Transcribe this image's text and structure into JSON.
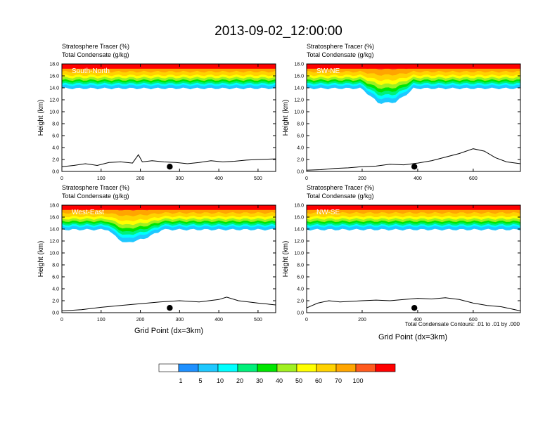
{
  "title": "2013-09-02_12:00:00",
  "contour_note": "Total Condensate Contours: .01 to .01 by .000",
  "colorbar": {
    "labels": [
      "1",
      "5",
      "10",
      "20",
      "30",
      "40",
      "50",
      "60",
      "70",
      "100"
    ],
    "colors": [
      "#ffffff",
      "#1e90ff",
      "#1ec8ff",
      "#00ffff",
      "#00f07a",
      "#00e600",
      "#a0f020",
      "#ffff00",
      "#ffd200",
      "#ffa500",
      "#ff5a1e",
      "#ff0000"
    ]
  },
  "chart_data": [
    {
      "type": "heatmap",
      "panel_label": "South-North",
      "header_line1": "Stratosphere Tracer   (%)",
      "header_line2": "Total Condensate   (g/kg)",
      "ylabel": "Height (km)",
      "xlabel": "",
      "xlim": [
        0,
        545
      ],
      "ylim": [
        0,
        18
      ],
      "xticks": [
        0,
        100,
        200,
        300,
        400,
        500
      ],
      "yticks": [
        "0.0",
        "2.0",
        "4.0",
        "6.0",
        "8.0",
        "10.0",
        "12.0",
        "14.0",
        "16.0",
        "18.0"
      ],
      "marker_x": 275,
      "tropopause_km": 14.1,
      "terrain": [
        [
          0,
          0.8
        ],
        [
          30,
          1.0
        ],
        [
          60,
          1.3
        ],
        [
          90,
          1.0
        ],
        [
          120,
          1.5
        ],
        [
          150,
          1.6
        ],
        [
          180,
          1.4
        ],
        [
          195,
          2.8
        ],
        [
          205,
          1.6
        ],
        [
          230,
          1.8
        ],
        [
          260,
          1.6
        ],
        [
          290,
          1.5
        ],
        [
          320,
          1.3
        ],
        [
          350,
          1.5
        ],
        [
          380,
          1.8
        ],
        [
          410,
          1.6
        ],
        [
          440,
          1.7
        ],
        [
          470,
          1.9
        ],
        [
          500,
          2.0
        ],
        [
          545,
          2.1
        ]
      ],
      "dip": []
    },
    {
      "type": "heatmap",
      "panel_label": "SW-NE",
      "header_line1": "Stratosphere Tracer   (%)",
      "header_line2": "Total Condensate   (g/kg)",
      "ylabel": "Height (km)",
      "xlabel": "",
      "xlim": [
        0,
        770
      ],
      "ylim": [
        0,
        18
      ],
      "xticks": [
        0,
        200,
        400,
        600
      ],
      "yticks": [
        "0.0",
        "2.0",
        "4.0",
        "6.0",
        "8.0",
        "10.0",
        "12.0",
        "14.0",
        "16.0",
        "18.0"
      ],
      "marker_x": 388,
      "tropopause_km": 14.1,
      "terrain": [
        [
          0,
          0.2
        ],
        [
          50,
          0.3
        ],
        [
          100,
          0.5
        ],
        [
          150,
          0.6
        ],
        [
          200,
          0.8
        ],
        [
          250,
          0.9
        ],
        [
          300,
          1.2
        ],
        [
          350,
          1.1
        ],
        [
          400,
          1.4
        ],
        [
          450,
          1.8
        ],
        [
          500,
          2.4
        ],
        [
          550,
          3.0
        ],
        [
          600,
          3.8
        ],
        [
          640,
          3.4
        ],
        [
          680,
          2.3
        ],
        [
          720,
          1.6
        ],
        [
          770,
          1.3
        ]
      ],
      "dip": [
        [
          200,
          14.0
        ],
        [
          260,
          11.6
        ],
        [
          320,
          11.8
        ],
        [
          380,
          13.8
        ]
      ]
    },
    {
      "type": "heatmap",
      "panel_label": "West-East",
      "header_line1": "Stratosphere Tracer   (%)",
      "header_line2": "Total Condensate   (g/kg)",
      "ylabel": "Height (km)",
      "xlabel": "Grid Point (dx=3km)",
      "xlim": [
        0,
        545
      ],
      "ylim": [
        0,
        18
      ],
      "xticks": [
        0,
        100,
        200,
        300,
        400,
        500
      ],
      "yticks": [
        "0.0",
        "2.0",
        "4.0",
        "6.0",
        "8.0",
        "10.0",
        "12.0",
        "14.0",
        "16.0",
        "18.0"
      ],
      "marker_x": 275,
      "tropopause_km": 14.1,
      "terrain": [
        [
          0,
          0.3
        ],
        [
          50,
          0.5
        ],
        [
          100,
          0.9
        ],
        [
          150,
          1.2
        ],
        [
          200,
          1.5
        ],
        [
          250,
          1.8
        ],
        [
          300,
          2.0
        ],
        [
          350,
          1.8
        ],
        [
          400,
          2.2
        ],
        [
          420,
          2.6
        ],
        [
          450,
          2.0
        ],
        [
          500,
          1.6
        ],
        [
          545,
          1.3
        ]
      ],
      "dip": [
        [
          120,
          13.8
        ],
        [
          160,
          11.8
        ],
        [
          210,
          12.6
        ],
        [
          250,
          13.8
        ]
      ]
    },
    {
      "type": "heatmap",
      "panel_label": "NW-SE",
      "header_line1": "Stratosphere Tracer   (%)",
      "header_line2": "Total Condensate   (g/kg)",
      "ylabel": "Height (km)",
      "xlabel": "",
      "xlim": [
        0,
        770
      ],
      "ylim": [
        0,
        18
      ],
      "xticks": [
        0,
        200,
        400,
        600
      ],
      "yticks": [
        "0.0",
        "2.0",
        "4.0",
        "6.0",
        "8.0",
        "10.0",
        "12.0",
        "14.0",
        "16.0",
        "18.0"
      ],
      "marker_x": 388,
      "tropopause_km": 14.1,
      "terrain": [
        [
          0,
          0.8
        ],
        [
          40,
          1.6
        ],
        [
          80,
          2.0
        ],
        [
          120,
          1.8
        ],
        [
          160,
          1.9
        ],
        [
          200,
          2.0
        ],
        [
          250,
          2.1
        ],
        [
          300,
          2.0
        ],
        [
          350,
          2.2
        ],
        [
          400,
          2.4
        ],
        [
          450,
          2.3
        ],
        [
          500,
          2.5
        ],
        [
          550,
          2.2
        ],
        [
          600,
          1.6
        ],
        [
          650,
          1.2
        ],
        [
          700,
          1.0
        ],
        [
          740,
          0.6
        ],
        [
          770,
          0.3
        ]
      ],
      "dip": []
    }
  ],
  "shared_xlabel": "Grid Point (dx=3km)"
}
